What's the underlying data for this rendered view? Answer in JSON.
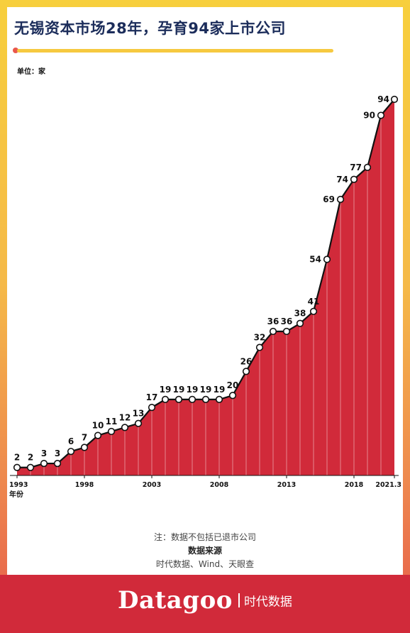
{
  "header": {
    "title": "无锡资本市场28年，孕育94家上市公司",
    "unit_label": "单位：家"
  },
  "colors": {
    "area_fill": "#d12a3a",
    "line": "#111111",
    "marker_fill": "#ffffff",
    "title": "#1c2d5b",
    "footer_bg": "#d12a3a"
  },
  "chart_data": {
    "type": "area",
    "title": "无锡资本市场28年，孕育94家上市公司",
    "xlabel": "年份",
    "ylabel": "单位：家",
    "x_tick_labels": [
      "1993",
      "1998",
      "2003",
      "2008",
      "2013",
      "2018",
      "2021.3"
    ],
    "x": [
      "1993",
      "1994",
      "1995",
      "1996",
      "1997",
      "1998",
      "1999",
      "2000",
      "2001",
      "2002",
      "2003",
      "2004",
      "2005",
      "2006",
      "2007",
      "2008",
      "2009",
      "2010",
      "2011",
      "2012",
      "2013",
      "2014",
      "2015",
      "2016",
      "2017",
      "2018",
      "2019",
      "2020",
      "2021.3"
    ],
    "series": [
      {
        "values": [
          2,
          2,
          3,
          3,
          6,
          7,
          10,
          11,
          12,
          13,
          17,
          19,
          19,
          19,
          19,
          19,
          20,
          26,
          32,
          36,
          36,
          38,
          41,
          54,
          69,
          74,
          77,
          90,
          94
        ]
      }
    ],
    "data_labels": [
      "2",
      "2",
      "3",
      "3",
      "6",
      "7",
      "10",
      "11",
      "12",
      "13",
      "17",
      "19",
      "19",
      "19",
      "19",
      "19",
      "20",
      "26",
      "32",
      "36",
      "36",
      "38",
      "41",
      "54",
      "69",
      "74",
      "77",
      "90",
      "94"
    ],
    "ylim": [
      0,
      94
    ],
    "grid": false,
    "legend": "none"
  },
  "notes": {
    "note": "注：数据不包括已退市公司",
    "source_title": "数据来源",
    "source_text": "时代数据、Wind、天眼查"
  },
  "footer": {
    "brand": "Datagoo",
    "brand_sub": "时代数据"
  }
}
